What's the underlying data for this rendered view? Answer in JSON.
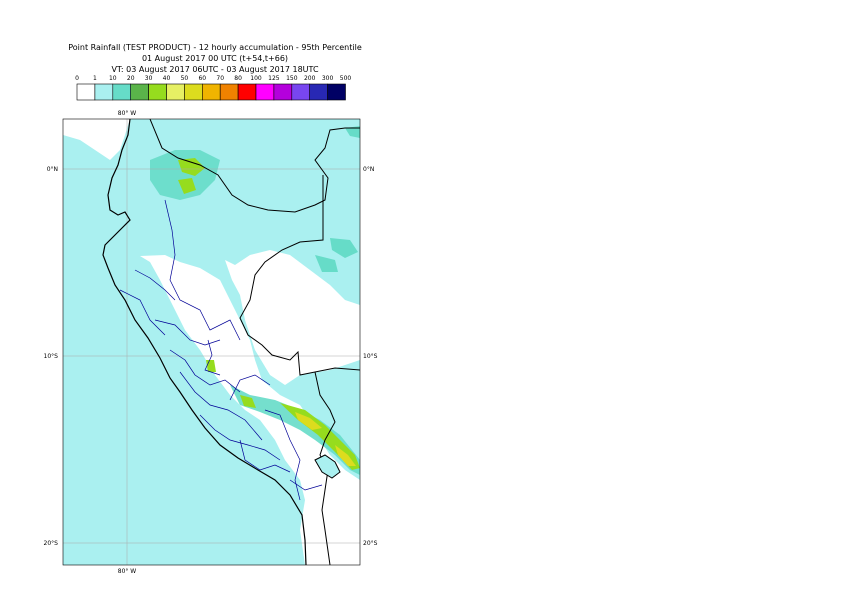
{
  "header": {
    "line1": "Point Rainfall (TEST PRODUCT) - 12 hourly accumulation - 95th Percentile",
    "line2": "01 August 2017 00 UTC (t+54,t+66)",
    "line3": "VT: 03 August 2017 06UTC - 03 August 2017 18UTC"
  },
  "legend": {
    "thresholds": [
      "0",
      "1",
      "10",
      "20",
      "30",
      "40",
      "50",
      "60",
      "70",
      "80",
      "100",
      "125",
      "150",
      "200",
      "300",
      "500"
    ],
    "colors": [
      "#ffffff",
      "#aaf0f0",
      "#66dcc8",
      "#5ab44a",
      "#96dc1e",
      "#e6f064",
      "#dcdc1e",
      "#f0b400",
      "#f08200",
      "#ff0000",
      "#ff00ff",
      "#b400dc",
      "#7846f0",
      "#2828b4",
      "#000064"
    ]
  },
  "map": {
    "lon_label_top": "80° W",
    "lon_label_bottom": "80° W",
    "lat_labels_left": [
      "0°N",
      "10°S",
      "20°S"
    ],
    "lat_labels_right": [
      "0°N",
      "10°S",
      "20°S"
    ],
    "colors": {
      "ocean": "#aaf0f0",
      "land_light": "#ffffff",
      "rain_light": "#aaf0f0",
      "rain_moderate": "#66dcc8",
      "rain_heavy": "#96dc1e",
      "rain_heavier": "#dcdc1e",
      "borders": "#000000",
      "admin": "#000096"
    }
  }
}
